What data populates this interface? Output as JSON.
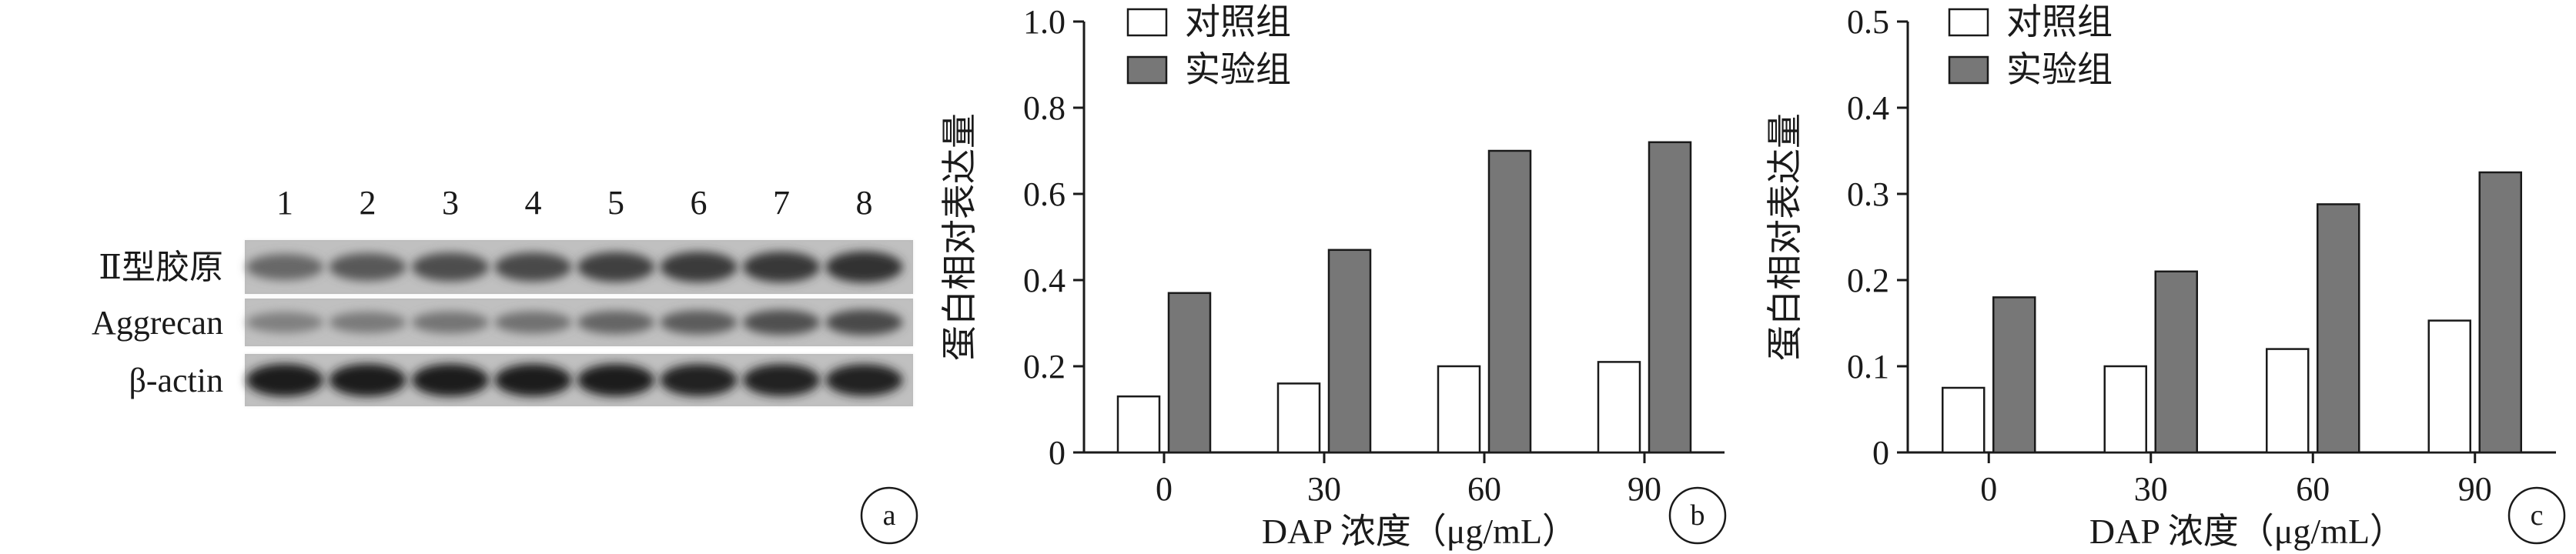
{
  "colors": {
    "control_fill": "#ffffff",
    "experiment_fill": "#777777",
    "stroke": "#1a1a1a",
    "blot_background": "#b8b8b8"
  },
  "panel_a": {
    "lane_numbers": [
      "1",
      "2",
      "3",
      "4",
      "5",
      "6",
      "7",
      "8"
    ],
    "rows": [
      {
        "label": "Ⅱ型胶原",
        "intensity": [
          0.45,
          0.55,
          0.62,
          0.64,
          0.7,
          0.74,
          0.76,
          0.8
        ]
      },
      {
        "label": "Aggrecan",
        "intensity": [
          0.28,
          0.32,
          0.36,
          0.38,
          0.46,
          0.52,
          0.6,
          0.64
        ]
      },
      {
        "label": "β-actin",
        "intensity": [
          0.95,
          0.95,
          0.94,
          0.93,
          0.93,
          0.92,
          0.92,
          0.9
        ]
      }
    ],
    "badge": "a"
  },
  "chart_data": [
    {
      "type": "bar",
      "categories": [
        "0",
        "30",
        "60",
        "90"
      ],
      "series": [
        {
          "name": "对照组",
          "values": [
            0.13,
            0.16,
            0.2,
            0.21
          ]
        },
        {
          "name": "实验组",
          "values": [
            0.37,
            0.47,
            0.7,
            0.72
          ]
        }
      ],
      "xlabel": "DAP 浓度（μg/mL）",
      "ylabel": "蛋白相对表达量",
      "ylim": [
        0,
        1.0
      ],
      "yticks": [
        "0",
        "0.2",
        "0.4",
        "0.6",
        "0.8",
        "1.0"
      ],
      "legend": "top-left",
      "badge": "b"
    },
    {
      "type": "bar",
      "categories": [
        "0",
        "30",
        "60",
        "90"
      ],
      "series": [
        {
          "name": "对照组",
          "values": [
            0.075,
            0.1,
            0.12,
            0.153
          ]
        },
        {
          "name": "实验组",
          "values": [
            0.18,
            0.21,
            0.288,
            0.325
          ]
        }
      ],
      "xlabel": "DAP 浓度（μg/mL）",
      "ylabel": "蛋白相对表达量",
      "ylim": [
        0,
        0.5
      ],
      "yticks": [
        "0",
        "0.1",
        "0.2",
        "0.3",
        "0.4",
        "0.5"
      ],
      "legend": "top-left",
      "badge": "c"
    }
  ]
}
